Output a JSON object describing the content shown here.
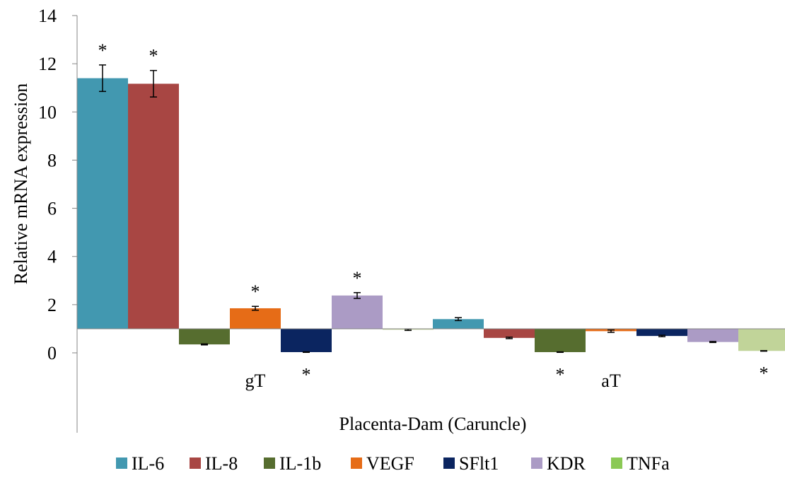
{
  "chart_data": {
    "type": "bar",
    "title": "",
    "xlabel": "Placenta-Dam (Caruncle)",
    "ylabel": "Relative mRNA expression",
    "ylim": [
      0,
      14
    ],
    "yticks": [
      0,
      2,
      4,
      6,
      8,
      10,
      12,
      14
    ],
    "baseline": 1,
    "categories": [
      "gT",
      "aT"
    ],
    "grid": false,
    "legend_position": "bottom",
    "significance_marker": "*",
    "series": [
      {
        "name": "IL-6",
        "color": "#4298B0",
        "values": [
          11.4,
          1.4
        ],
        "errors": [
          0.55,
          0.06
        ],
        "significant": [
          true,
          false
        ]
      },
      {
        "name": "IL-8",
        "color": "#A84643",
        "values": [
          11.17,
          0.62
        ],
        "errors": [
          0.55,
          0.03
        ],
        "significant": [
          true,
          false
        ]
      },
      {
        "name": "IL-1b",
        "color": "#566D2F",
        "values": [
          0.35,
          0.03
        ],
        "errors": [
          0.02,
          0.01
        ],
        "significant": [
          false,
          true
        ]
      },
      {
        "name": "VEGF",
        "color": "#E66C17",
        "values": [
          1.85,
          0.9
        ],
        "errors": [
          0.08,
          0.05
        ],
        "significant": [
          true,
          false
        ]
      },
      {
        "name": "SFlt1",
        "color": "#0B2560",
        "values": [
          0.03,
          0.7
        ],
        "errors": [
          0.01,
          0.03
        ],
        "significant": [
          true,
          false
        ]
      },
      {
        "name": "KDR",
        "color": "#AB9BC5",
        "values": [
          2.38,
          0.45
        ],
        "errors": [
          0.12,
          0.02
        ],
        "significant": [
          true,
          false
        ]
      },
      {
        "name": "TNFa",
        "color": "#C1D499",
        "legend_color": "#8BC955",
        "values": [
          0.96,
          0.08
        ],
        "errors": [
          0.03,
          0.01
        ],
        "significant": [
          false,
          true
        ]
      }
    ]
  }
}
